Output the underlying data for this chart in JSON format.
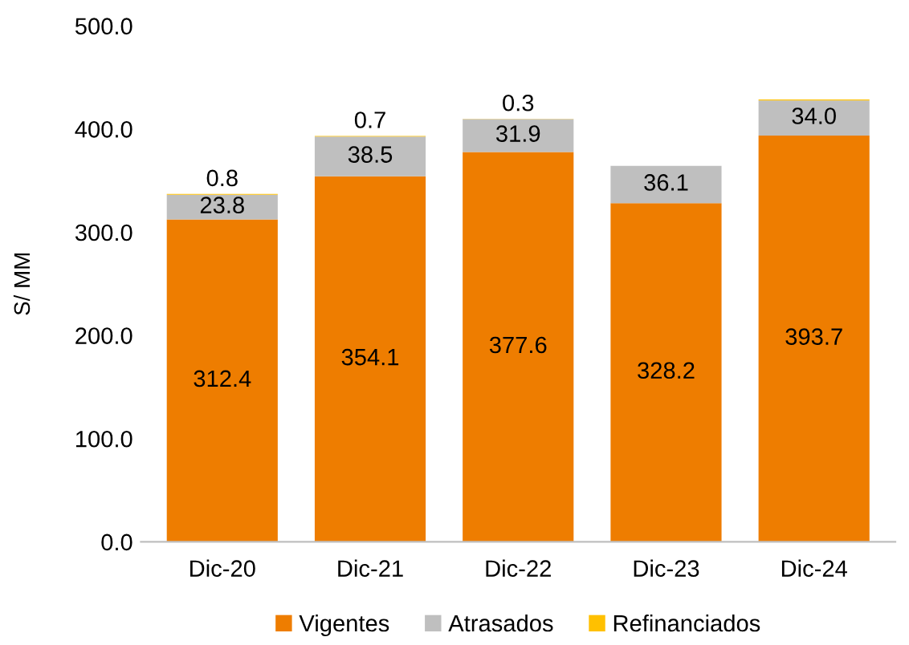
{
  "chart_data": {
    "type": "bar",
    "stacked": true,
    "ylabel": "S/ MM",
    "categories": [
      "Dic-20",
      "Dic-21",
      "Dic-22",
      "Dic-23",
      "Dic-24"
    ],
    "series": [
      {
        "name": "Vigentes",
        "color": "#ee7d00",
        "values": [
          312.4,
          354.1,
          377.6,
          328.2,
          393.7
        ],
        "value_labels": [
          "312.4",
          "354.1",
          "377.6",
          "328.2",
          "393.7"
        ]
      },
      {
        "name": "Atrasados",
        "color": "#bfbfbf",
        "values": [
          23.8,
          38.5,
          31.9,
          36.1,
          34.0
        ],
        "value_labels": [
          "23.8",
          "38.5",
          "31.9",
          "36.1",
          "34.0"
        ]
      },
      {
        "name": "Refinanciados",
        "color": "#ffc000",
        "values": [
          0.8,
          0.7,
          0.3,
          0,
          1
        ],
        "value_labels": [
          "0.8",
          "0.7",
          "0.3",
          null,
          null
        ]
      }
    ],
    "ylim": [
      0,
      500
    ],
    "yticks": [
      {
        "value": 0,
        "label": "0.0"
      },
      {
        "value": 100,
        "label": "100.0"
      },
      {
        "value": 200,
        "label": "200.0"
      },
      {
        "value": 300,
        "label": "300.0"
      },
      {
        "value": 400,
        "label": "400.0"
      },
      {
        "value": 500,
        "label": "500.0"
      }
    ],
    "grid": false,
    "legend": "bottom"
  }
}
